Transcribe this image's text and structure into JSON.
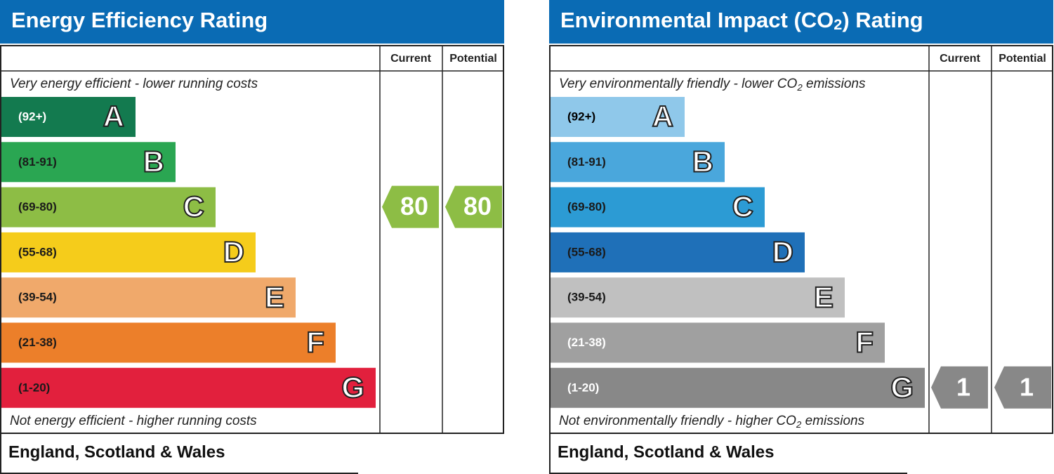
{
  "panels": [
    {
      "title": [
        "Energy Efficiency Rating"
      ],
      "headers": [
        "Current",
        "Potential"
      ],
      "top_note": [
        "Very energy efficient - lower running costs"
      ],
      "bottom_note": [
        "Not energy efficient - higher running costs"
      ],
      "bands": [
        {
          "range": "(92+)",
          "letter": "A",
          "color": "#137a4f",
          "text_color": "#ffffff"
        },
        {
          "range": "(81-91)",
          "letter": "B",
          "color": "#2aa652",
          "text_color": "#1a1a1a"
        },
        {
          "range": "(69-80)",
          "letter": "C",
          "color": "#8dbd45",
          "text_color": "#1a1a1a"
        },
        {
          "range": "(55-68)",
          "letter": "D",
          "color": "#f5cc1b",
          "text_color": "#1a1a1a"
        },
        {
          "range": "(39-54)",
          "letter": "E",
          "color": "#f0a96b",
          "text_color": "#1a1a1a"
        },
        {
          "range": "(21-38)",
          "letter": "F",
          "color": "#ec7f2a",
          "text_color": "#1a1a1a"
        },
        {
          "range": "(1-20)",
          "letter": "G",
          "color": "#e2203d",
          "text_color": "#1a1a1a"
        }
      ],
      "current": 80,
      "potential": 80,
      "arrow_color": "#8dbd45",
      "footer": "England, Scotland & Wales"
    },
    {
      "title": [
        "Environmental Impact (CO",
        "2",
        ") Rating"
      ],
      "headers": [
        "Current",
        "Potential"
      ],
      "top_note": [
        "Very environmentally friendly - lower CO",
        "2",
        " emissions"
      ],
      "bottom_note": [
        "Not environmentally friendly - higher CO",
        "2",
        " emissions"
      ],
      "bands": [
        {
          "range": "(92+)",
          "letter": "A",
          "color": "#8fc8ea",
          "text_color": "#000000"
        },
        {
          "range": "(81-91)",
          "letter": "B",
          "color": "#4aa7dc",
          "text_color": "#1a1a1a"
        },
        {
          "range": "(69-80)",
          "letter": "C",
          "color": "#2c9bd4",
          "text_color": "#1a1a1a"
        },
        {
          "range": "(55-68)",
          "letter": "D",
          "color": "#1f70b8",
          "text_color": "#1a1a1a"
        },
        {
          "range": "(39-54)",
          "letter": "E",
          "color": "#c0c0c0",
          "text_color": "#1a1a1a"
        },
        {
          "range": "(21-38)",
          "letter": "F",
          "color": "#a0a0a0",
          "text_color": "#ffffff"
        },
        {
          "range": "(1-20)",
          "letter": "G",
          "color": "#888888",
          "text_color": "#ffffff"
        }
      ],
      "current": 1,
      "potential": 1,
      "arrow_color": "#888888",
      "footer": "England, Scotland & Wales"
    }
  ]
}
